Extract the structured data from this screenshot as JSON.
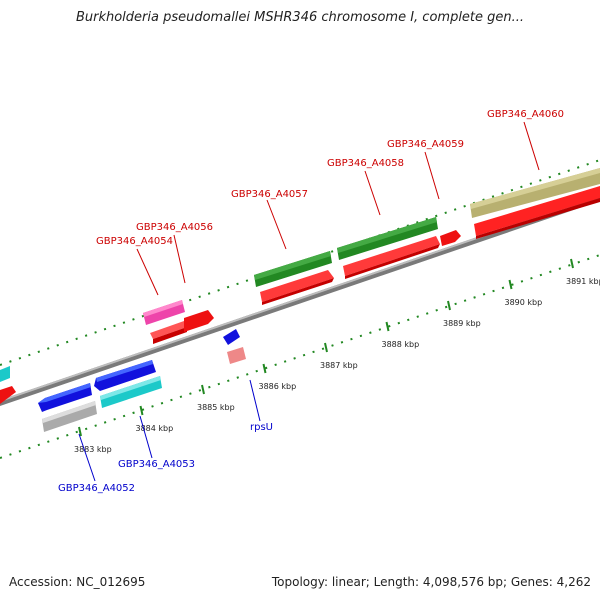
{
  "title": "Burkholderia pseudomallei MSHR346 chromosome I, complete gen...",
  "footer": {
    "accession": "Accession: NC_012695",
    "summary": "Topology: linear; Length: 4,098,576 bp; Genes: 4,262"
  },
  "ruler": {
    "ticks": [
      "3883 kbp",
      "3884 kbp",
      "3885 kbp",
      "3886 kbp",
      "3887 kbp",
      "3888 kbp",
      "3889 kbp",
      "3890 kbp",
      "3891 kbp"
    ]
  },
  "genes": {
    "top": [
      "GBP346_A4054",
      "GBP346_A4056",
      "GBP346_A4057",
      "GBP346_A4058",
      "GBP346_A4059",
      "GBP346_A4060"
    ],
    "bottom": [
      "GBP346_A4052",
      "GBP346_A4053",
      "rpsU"
    ]
  },
  "colors": {
    "label_top": "#cc0000",
    "label_bottom": "#0000cc",
    "cds": "#ee1111",
    "tick": "#228822",
    "axis": "#888888"
  }
}
